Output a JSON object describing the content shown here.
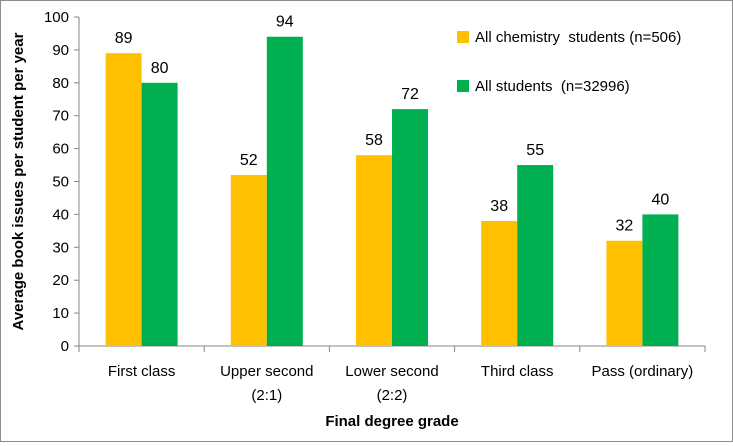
{
  "chart_data": {
    "type": "bar",
    "categories": [
      [
        "First class"
      ],
      [
        "Upper second",
        "(2:1)"
      ],
      [
        "Lower second",
        "(2:2)"
      ],
      [
        "Third class"
      ],
      [
        "Pass (ordinary)"
      ]
    ],
    "series": [
      {
        "name": "All chemistry  students (n=506)",
        "values": [
          89,
          52,
          58,
          38,
          32
        ],
        "color": "#ffc000"
      },
      {
        "name": "All students  (n=32996)",
        "values": [
          80,
          94,
          72,
          55,
          40
        ],
        "color": "#00b050"
      }
    ],
    "data_labels": [
      [
        "89",
        "52",
        "58",
        "38",
        "32"
      ],
      [
        "80",
        "94",
        "72",
        "55",
        "40"
      ]
    ],
    "ylim": [
      0,
      100
    ],
    "yticks": [
      0,
      10,
      20,
      30,
      40,
      50,
      60,
      70,
      80,
      90,
      100
    ],
    "xlabel": "Final degree grade",
    "ylabel": "Average book issues per student per year",
    "legend_position": "top-right",
    "grid": false
  }
}
